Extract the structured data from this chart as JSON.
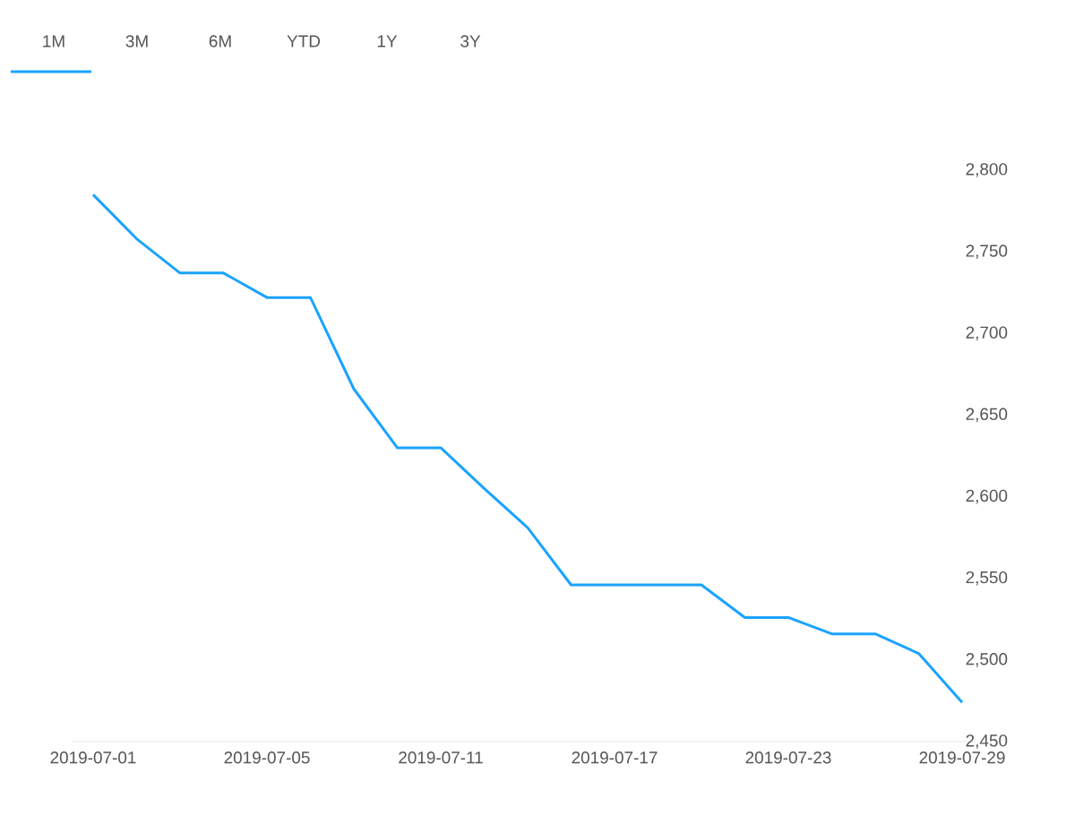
{
  "chart_data": {
    "type": "line",
    "categories": [
      "2019-07-01",
      null,
      null,
      null,
      "2019-07-05",
      null,
      null,
      null,
      "2019-07-11",
      null,
      null,
      null,
      "2019-07-17",
      null,
      null,
      null,
      "2019-07-23",
      null,
      null,
      null,
      "2019-07-29"
    ],
    "values": [
      2785,
      2758,
      2737,
      2737,
      2722,
      2722,
      2666,
      2630,
      2630,
      2605,
      2581,
      2546,
      2546,
      2546,
      2546,
      2526,
      2526,
      2516,
      2516,
      2504,
      2474
    ],
    "color": "#1aa3ff",
    "ylim": [
      2450,
      2800
    ],
    "yticks": [
      {
        "value": 2450,
        "label": "2,450"
      },
      {
        "value": 2500,
        "label": "2,500"
      },
      {
        "value": 2550,
        "label": "2,550"
      },
      {
        "value": 2600,
        "label": "2,600"
      },
      {
        "value": 2650,
        "label": "2,650"
      },
      {
        "value": 2700,
        "label": "2,700"
      },
      {
        "value": 2750,
        "label": "2,750"
      },
      {
        "value": 2800,
        "label": "2,800"
      }
    ],
    "annotations": [
      "1M",
      "3M",
      "6M",
      "YTD",
      "1Y",
      "3Y"
    ]
  }
}
